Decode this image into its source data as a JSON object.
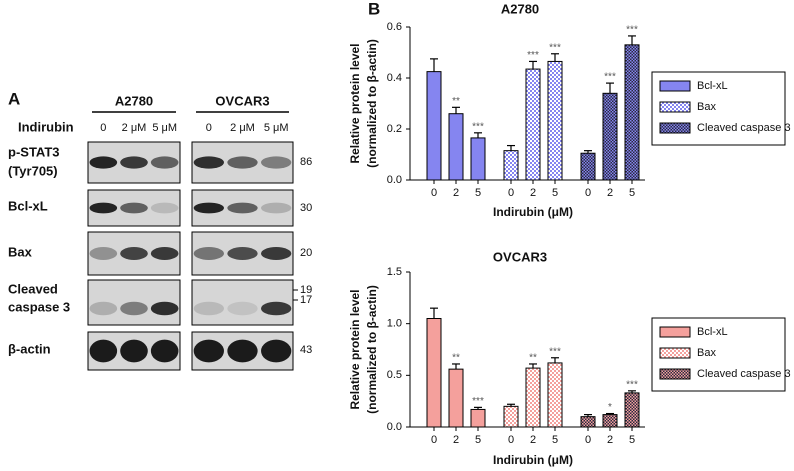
{
  "blot": {
    "panel_label": "A",
    "treatment_label": "Indirubin",
    "cell_lines": [
      {
        "name": "A2780",
        "lanes": [
          "0",
          "2 μM",
          "5 μM"
        ]
      },
      {
        "name": "OVCAR3",
        "lanes": [
          "0",
          "2 μM",
          "5 μM"
        ]
      }
    ],
    "rows": [
      {
        "label_lines": [
          "p-STAT3",
          "(Tyr705)"
        ],
        "kda": [
          "86"
        ]
      },
      {
        "label_lines": [
          "Bcl-xL"
        ],
        "kda": [
          "30"
        ]
      },
      {
        "label_lines": [
          "Bax"
        ],
        "kda": [
          "20"
        ]
      },
      {
        "label_lines": [
          "Cleaved",
          "caspase 3"
        ],
        "kda": [
          "19",
          "17"
        ]
      },
      {
        "label_lines": [
          "β-actin"
        ],
        "kda": [
          "43"
        ]
      }
    ]
  },
  "chart_data": [
    {
      "type": "bar",
      "panel_label": "B",
      "title": "A2780",
      "x_label": "Indirubin (μM)",
      "y_label_lines": [
        "Relative protein level",
        "(normalized to β-actin)"
      ],
      "categories": [
        "0",
        "2",
        "5"
      ],
      "series": [
        {
          "name": "Bcl-xL",
          "color": "#8585f0",
          "pattern": "solid",
          "values": [
            0.425,
            0.26,
            0.165
          ],
          "errors": [
            0.05,
            0.025,
            0.02
          ],
          "annotations": [
            null,
            "**",
            "***"
          ]
        },
        {
          "name": "Bax",
          "color": "#8585f0",
          "pattern": "checker",
          "values": [
            0.115,
            0.435,
            0.465
          ],
          "errors": [
            0.02,
            0.03,
            0.03
          ],
          "annotations": [
            null,
            "***",
            "***"
          ]
        },
        {
          "name": "Cleaved caspase 3",
          "color": "#8585f0",
          "pattern": "dense-checker",
          "values": [
            0.105,
            0.34,
            0.53
          ],
          "errors": [
            0.01,
            0.04,
            0.035
          ],
          "annotations": [
            null,
            "***",
            "***"
          ]
        }
      ],
      "ylim": [
        0,
        0.6
      ],
      "yticks": [
        {
          "value": 0,
          "label": "0.0"
        },
        0.2,
        0.4,
        0.6
      ],
      "legend": "right"
    },
    {
      "type": "bar",
      "title": "OVCAR3",
      "x_label": "Indirubin (μM)",
      "y_label_lines": [
        "Relative protein level",
        "(normalized to β-actin)"
      ],
      "categories": [
        "0",
        "2",
        "5"
      ],
      "series": [
        {
          "name": "Bcl-xL",
          "color": "#f4a09c",
          "pattern": "solid",
          "values": [
            1.05,
            0.56,
            0.17
          ],
          "errors": [
            0.1,
            0.05,
            0.02
          ],
          "annotations": [
            null,
            "**",
            "***"
          ]
        },
        {
          "name": "Bax",
          "color": "#f4a09c",
          "pattern": "checker",
          "values": [
            0.2,
            0.57,
            0.62
          ],
          "errors": [
            0.02,
            0.04,
            0.05
          ],
          "annotations": [
            null,
            "**",
            "***"
          ]
        },
        {
          "name": "Cleaved caspase 3",
          "color": "#f4a09c",
          "pattern": "dense-checker",
          "values": [
            0.1,
            0.12,
            0.33
          ],
          "errors": [
            0.02,
            0.01,
            0.02
          ],
          "annotations": [
            null,
            "*",
            "***"
          ]
        }
      ],
      "ylim": [
        0,
        1.5
      ],
      "yticks": [
        {
          "value": 0,
          "label": "0.0"
        },
        0.5,
        {
          "value": 1,
          "label": "1.0"
        },
        1.5
      ],
      "legend": "right"
    }
  ]
}
